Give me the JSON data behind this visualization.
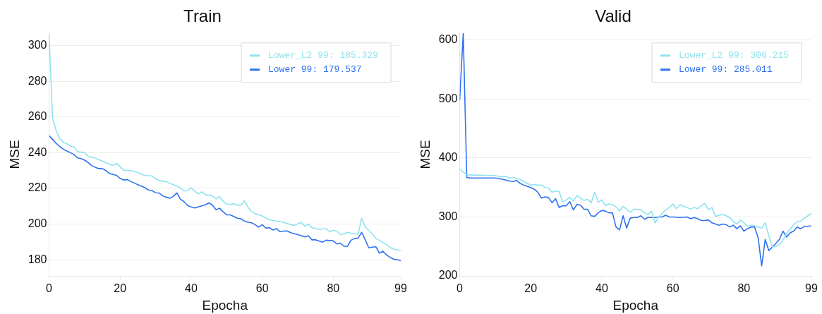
{
  "chart_data": [
    {
      "type": "line",
      "title": "Train",
      "xlabel": "Epocha",
      "ylabel": "MSE",
      "xlim": [
        0,
        99
      ],
      "xticks": [
        0,
        20,
        40,
        60,
        80,
        99
      ],
      "ylim": [
        171,
        307
      ],
      "yticks": [
        180,
        200,
        220,
        240,
        260,
        280,
        300
      ],
      "grid": "y",
      "legend": "top right",
      "series": [
        {
          "name": "Lower_L2 99: 185.329",
          "color": "#8fe3ee",
          "x": [
            0,
            1,
            2,
            3,
            4,
            5,
            6,
            7,
            8,
            10,
            11,
            13,
            15,
            17,
            18,
            19,
            20,
            21,
            23,
            25,
            27,
            29,
            30,
            31,
            33,
            35,
            37,
            38,
            39,
            40,
            41,
            42,
            43,
            44,
            45,
            46,
            47,
            48,
            49,
            50,
            51,
            52,
            53,
            54,
            55,
            56,
            57,
            58,
            60,
            62,
            64,
            66,
            68,
            69,
            70,
            71,
            72,
            73,
            74,
            76,
            78,
            79,
            80,
            81,
            82,
            83,
            84,
            85,
            86,
            87,
            88,
            89,
            90,
            91,
            92,
            93,
            94,
            95,
            96,
            97,
            98,
            99
          ],
          "values": [
            306.5,
            259.6,
            252.4,
            247.8,
            245.9,
            245,
            243.5,
            243.3,
            240.6,
            240,
            238,
            237,
            235.2,
            233.5,
            232.8,
            234.1,
            232.2,
            230.2,
            230,
            228.9,
            227.2,
            227,
            225.3,
            224.4,
            223.7,
            222.1,
            220.4,
            218.5,
            218.7,
            220.4,
            218.5,
            216.9,
            218.1,
            216.5,
            216.3,
            215.8,
            214.1,
            215.4,
            212.8,
            211.1,
            211.1,
            211.5,
            210.5,
            210.6,
            213.1,
            209.5,
            206.9,
            205.9,
            204.6,
            202.4,
            201.7,
            201,
            199.7,
            199.3,
            200.1,
            201,
            198.8,
            200,
            198,
            197.1,
            197.5,
            195.7,
            196.5,
            196.1,
            194.1,
            194.5,
            195.4,
            194.9,
            194.5,
            194.5,
            203.3,
            198.4,
            196.5,
            194.5,
            191.9,
            191,
            189.7,
            188.6,
            186.9,
            186,
            185.6,
            185.3
          ]
        },
        {
          "name": "Lower 99: 179.537",
          "color": "#2f72f0",
          "x": [
            0,
            1,
            2,
            3,
            4,
            5,
            6,
            7,
            8,
            9,
            10,
            11,
            12,
            13,
            14,
            15,
            16,
            17,
            18,
            19,
            20,
            21,
            22,
            23,
            24,
            25,
            26,
            27,
            28,
            29,
            30,
            31,
            32,
            33,
            34,
            35,
            36,
            37,
            38,
            39,
            40,
            41,
            42,
            43,
            44,
            45,
            46,
            47,
            48,
            49,
            50,
            51,
            52,
            53,
            54,
            55,
            56,
            57,
            58,
            59,
            60,
            61,
            62,
            63,
            64,
            65,
            66,
            67,
            68,
            70,
            72,
            73,
            74,
            75,
            76,
            77,
            78,
            80,
            81,
            82,
            83,
            84,
            85,
            86,
            87,
            88,
            89,
            90,
            91,
            92,
            93,
            94,
            95,
            96,
            97,
            98,
            99
          ],
          "values": [
            249.5,
            247.4,
            245.2,
            243.5,
            242,
            240.9,
            240,
            239,
            237.1,
            236.7,
            235.8,
            234.5,
            232.8,
            231.8,
            231.1,
            231.1,
            230,
            228.3,
            227.8,
            227.3,
            225.6,
            224.7,
            224.9,
            223.9,
            223,
            222.1,
            221.3,
            220.4,
            219.1,
            218.8,
            217.5,
            217.4,
            215.8,
            215.1,
            214.5,
            215.5,
            217.5,
            213.9,
            212.6,
            210.4,
            209.6,
            209,
            209.6,
            210.2,
            210.8,
            211.9,
            210.6,
            208,
            208.9,
            206.9,
            205.2,
            205.2,
            204.3,
            203.3,
            203,
            201.7,
            201,
            200.7,
            199.7,
            198.3,
            199.7,
            197.8,
            198,
            196.7,
            197.5,
            195.7,
            196.1,
            196.2,
            195.2,
            194.1,
            192.8,
            193.5,
            191.2,
            191.2,
            190.6,
            189.9,
            191,
            190.6,
            188.9,
            189.3,
            187.6,
            187.6,
            191,
            191.9,
            192.2,
            195.4,
            191.2,
            186.7,
            187.1,
            187.3,
            183.7,
            184.8,
            182.7,
            181.4,
            180.4,
            180.1,
            179.5
          ]
        }
      ]
    },
    {
      "type": "line",
      "title": "Valid",
      "xlabel": "Epocha",
      "ylabel": "MSE",
      "xlim": [
        0,
        99
      ],
      "xticks": [
        0,
        20,
        40,
        60,
        80,
        99
      ],
      "ylim": [
        200,
        612
      ],
      "yticks": [
        200,
        300,
        400,
        500,
        600
      ],
      "grid": "y",
      "legend": "top right",
      "series": [
        {
          "name": "Lower_L2 99: 306.215",
          "color": "#8fe3ee",
          "x": [
            0,
            1,
            2,
            3,
            5,
            10,
            12,
            13,
            14,
            15,
            16,
            17,
            18,
            19,
            20,
            21,
            22,
            23,
            24,
            25,
            26,
            27,
            28,
            29,
            30,
            31,
            32,
            33,
            34,
            35,
            36,
            37,
            38,
            39,
            40,
            41,
            42,
            43,
            44,
            45,
            46,
            47,
            48,
            49,
            50,
            51,
            52,
            53,
            54,
            55,
            56,
            57,
            58,
            59,
            60,
            61,
            62,
            63,
            64,
            65,
            66,
            67,
            68,
            69,
            70,
            71,
            72,
            73,
            74,
            75,
            76,
            77,
            78,
            79,
            80,
            81,
            82,
            83,
            84,
            85,
            86,
            87,
            88,
            89,
            90,
            91,
            92,
            93,
            94,
            95,
            96,
            97,
            98,
            99
          ],
          "values": [
            382,
            376,
            372,
            371,
            371,
            370,
            368,
            369,
            366,
            367,
            365,
            364,
            360,
            357,
            354,
            355,
            354,
            354,
            350,
            349,
            342,
            344,
            343,
            325,
            329,
            333,
            327,
            336,
            332,
            328,
            330,
            324,
            342,
            325,
            329,
            319,
            322,
            321,
            317,
            310,
            318,
            313,
            308,
            313,
            313,
            312,
            307,
            304,
            310,
            290,
            300,
            306,
            312,
            316,
            322,
            314,
            321,
            318,
            316,
            313,
            316,
            314,
            319,
            323,
            312,
            316,
            301,
            303,
            304,
            302,
            299,
            292,
            288,
            295,
            290,
            284,
            286,
            285,
            283,
            281,
            290,
            268,
            249,
            250,
            253,
            261,
            272,
            279,
            287,
            292,
            293,
            298,
            302,
            306
          ]
        },
        {
          "name": "Lower 99: 285.011",
          "color": "#2f72f0",
          "x": [
            0,
            1,
            2,
            3,
            5,
            10,
            12,
            14,
            15,
            16,
            17,
            18,
            19,
            20,
            21,
            22,
            23,
            24,
            25,
            26,
            27,
            28,
            29,
            30,
            31,
            32,
            33,
            34,
            35,
            36,
            37,
            38,
            39,
            40,
            41,
            42,
            43,
            44,
            45,
            46,
            47,
            48,
            49,
            50,
            51,
            52,
            53,
            54,
            55,
            56,
            57,
            58,
            59,
            60,
            62,
            64,
            65,
            66,
            67,
            68,
            69,
            70,
            71,
            72,
            73,
            74,
            75,
            76,
            77,
            78,
            79,
            80,
            81,
            82,
            83,
            84,
            85,
            86,
            87,
            88,
            89,
            90,
            91,
            92,
            93,
            94,
            95,
            96,
            97,
            98,
            99
          ],
          "values": [
            498,
            612,
            367,
            366,
            366,
            366,
            364,
            361,
            360,
            362,
            357,
            354,
            352,
            350,
            347,
            342,
            332,
            334,
            333,
            324,
            331,
            316,
            319,
            319,
            326,
            312,
            321,
            320,
            313,
            313,
            302,
            301,
            307,
            311,
            310,
            307,
            307,
            283,
            278,
            302,
            281,
            298,
            299,
            299,
            302,
            296,
            299,
            299,
            299,
            300,
            300,
            303,
            300,
            300,
            299,
            300,
            297,
            299,
            297,
            294,
            294,
            295,
            290,
            288,
            286,
            288,
            287,
            283,
            286,
            280,
            285,
            276,
            280,
            283,
            283,
            265,
            217,
            262,
            243,
            249,
            255,
            262,
            276,
            266,
            273,
            276,
            283,
            280,
            284,
            284,
            285
          ]
        }
      ]
    }
  ]
}
